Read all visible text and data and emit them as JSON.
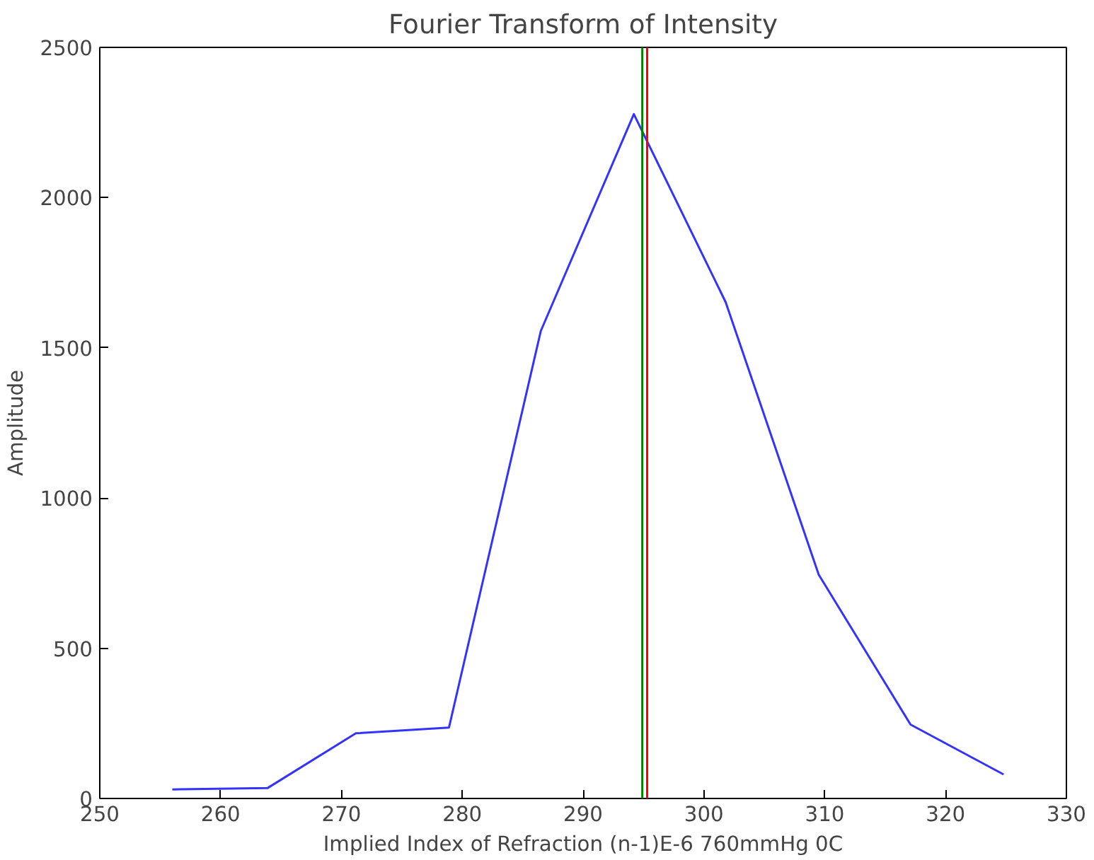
{
  "chart_data": {
    "type": "line",
    "title": "Fourier Transform of Intensity",
    "xlabel": "Implied Index of Refraction (n-1)E-6 760mmHg 0C",
    "ylabel": "Amplitude",
    "x": [
      256,
      263.9,
      271.2,
      278.9,
      286.5,
      294.2,
      301.8,
      309.5,
      317.1,
      324.8
    ],
    "series": [
      {
        "color": "#3333ff",
        "values": [
          30,
          35,
          217,
          236,
          1556,
          2278,
          1652,
          745,
          246,
          80
        ]
      }
    ],
    "xlim": [
      250,
      330
    ],
    "xticks": [
      250,
      260,
      270,
      280,
      290,
      300,
      310,
      320,
      330
    ],
    "ylim": [
      0,
      2500
    ],
    "yticks": [
      0,
      500,
      1000,
      1500,
      2000,
      2500
    ],
    "ref_lines": [
      {
        "axis": "x",
        "value": 294.9,
        "color": "#008000"
      },
      {
        "axis": "x",
        "value": 295.3,
        "color": "#ff0000"
      }
    ],
    "grid": false
  }
}
